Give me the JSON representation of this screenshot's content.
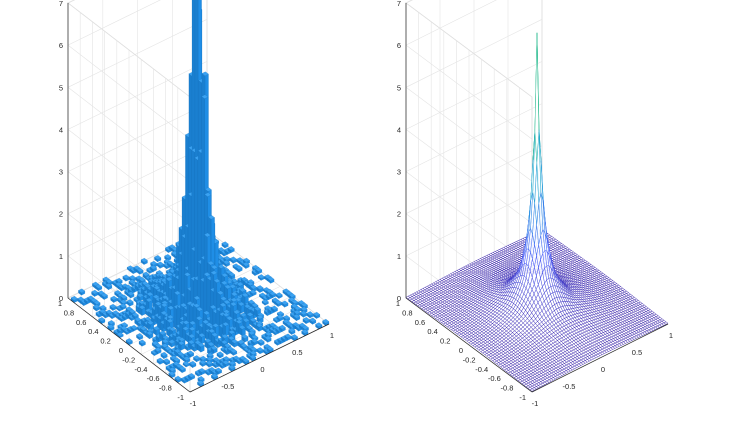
{
  "chart_data": [
    {
      "type": "bar3d",
      "description": "bivariate histogram",
      "x_range": [
        -1,
        1
      ],
      "y_range": [
        -1,
        1
      ],
      "zlim": [
        0,
        7
      ],
      "x_ticks": [
        "-1",
        "-0.5",
        "0",
        "0.5",
        "1"
      ],
      "y_ticks": [
        "-1",
        "-0.8",
        "-0.6",
        "-0.4",
        "-0.2",
        "0",
        "0.2",
        "0.4",
        "0.6",
        "0.8",
        "1"
      ],
      "z_ticks": [
        "0",
        "1",
        "2",
        "3",
        "4",
        "5",
        "6",
        "7"
      ],
      "grid": true,
      "color": "#1f8ee6",
      "peak": {
        "x": 0,
        "y": 0,
        "value": 6.6
      },
      "center_profile": [
        {
          "r": 0.0,
          "value": 6.6
        },
        {
          "r": 0.06,
          "value": 4.8
        },
        {
          "r": 0.12,
          "value": 2.5
        },
        {
          "r": 0.2,
          "value": 1.3
        },
        {
          "r": 0.3,
          "value": 0.6
        },
        {
          "r": 0.5,
          "value": 0.2
        },
        {
          "r": 0.8,
          "value": 0.05
        }
      ]
    },
    {
      "type": "surface",
      "description": "density mesh surface",
      "x_range": [
        -1,
        1
      ],
      "y_range": [
        -1,
        1
      ],
      "zlim": [
        0,
        7
      ],
      "x_ticks": [
        "-1",
        "-0.5",
        "0",
        "0.5",
        "1"
      ],
      "y_ticks": [
        "-1",
        "-0.8",
        "-0.6",
        "-0.4",
        "-0.2",
        "0",
        "0.2",
        "0.4",
        "0.6",
        "0.8",
        "1"
      ],
      "z_ticks": [
        "0",
        "1",
        "2",
        "3",
        "4",
        "5",
        "6",
        "7"
      ],
      "grid": true,
      "colormap": "parula",
      "peak": {
        "x": 0,
        "y": 0,
        "value": 6.6
      },
      "center_profile": [
        {
          "r": 0.0,
          "value": 6.6
        },
        {
          "r": 0.05,
          "value": 3.3
        },
        {
          "r": 0.1,
          "value": 1.9
        },
        {
          "r": 0.2,
          "value": 0.9
        },
        {
          "r": 0.4,
          "value": 0.35
        },
        {
          "r": 0.8,
          "value": 0.1
        }
      ]
    }
  ]
}
